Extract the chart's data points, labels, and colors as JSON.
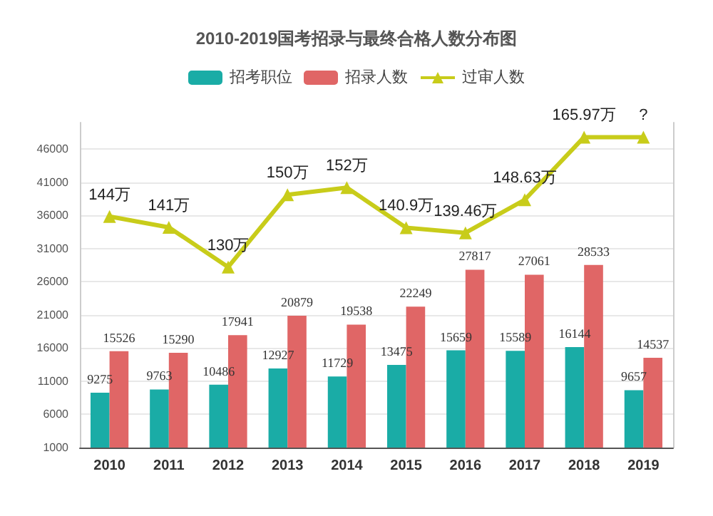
{
  "chart_data": {
    "type": "bar",
    "title": "2010-2019国考招录与最终合格人数分布图",
    "categories": [
      "2010",
      "2011",
      "2012",
      "2013",
      "2014",
      "2015",
      "2016",
      "2017",
      "2018",
      "2019"
    ],
    "series": [
      {
        "name": "招考职位",
        "color": "#1aaca6",
        "values": [
          9275,
          9763,
          10486,
          12927,
          11729,
          13475,
          15659,
          15589,
          16144,
          9657
        ],
        "data_labels": true
      },
      {
        "name": "招录人数",
        "color": "#e06666",
        "values": [
          15526,
          15290,
          17941,
          20879,
          19538,
          22249,
          27817,
          27061,
          28533,
          14537
        ],
        "data_labels": true
      },
      {
        "name": "过审人数",
        "type": "line",
        "axis": "y2",
        "color": "#c8cc1a",
        "marker": "triangle",
        "values": [
          144,
          141,
          130,
          150,
          152,
          140.9,
          139.46,
          148.63,
          165.97,
          165.97
        ],
        "value_labels": [
          "144万",
          "141万",
          "130万",
          "150万",
          "152万",
          "140.9万",
          "139.46万",
          "148.63万",
          "165.97万",
          "?"
        ]
      }
    ],
    "ylim": [
      1000,
      50000
    ],
    "yticks": [
      1000,
      6000,
      11000,
      16000,
      21000,
      26000,
      31000,
      36000,
      41000,
      46000
    ],
    "y2lim": [
      80,
      170
    ],
    "grid": "y",
    "legend": "top"
  }
}
